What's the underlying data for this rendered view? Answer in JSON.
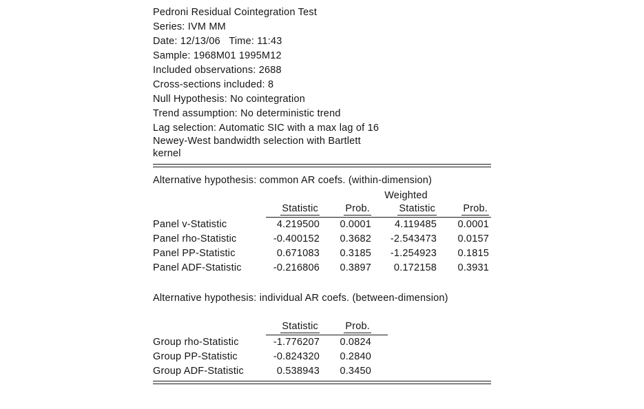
{
  "report": {
    "colors": {
      "background": "#ffffff",
      "text": "#141414",
      "rule": "#1a1a1a"
    },
    "header_lines": [
      "Pedroni Residual Cointegration Test",
      "Series: IVM MM",
      "Date: 12/13/06   Time: 11:43",
      "Sample: 1968M01 1995M12",
      "Included observations: 2688",
      "Cross-sections included: 8",
      "Null Hypothesis: No cointegration",
      "Trend assumption: No deterministic trend",
      "Lag selection: Automatic SIC with a max lag of 16",
      "Newey-West bandwidth selection with Bartlett",
      "kernel"
    ],
    "within": {
      "title": "Alternative hypothesis: common AR coefs. (within-dimension)",
      "weighted_group_label": "Weighted",
      "columns": {
        "statistic": "Statistic",
        "prob": "Prob.",
        "weighted_statistic": "Statistic",
        "weighted_prob": "Prob."
      },
      "rows": [
        {
          "label": "Panel v-Statistic",
          "statistic": "4.219500",
          "prob": "0.0001",
          "weighted_statistic": "4.119485",
          "weighted_prob": "0.0001"
        },
        {
          "label": "Panel rho-Statistic",
          "statistic": "-0.400152",
          "prob": "0.3682",
          "weighted_statistic": "-2.543473",
          "weighted_prob": "0.0157"
        },
        {
          "label": "Panel PP-Statistic",
          "statistic": "0.671083",
          "prob": "0.3185",
          "weighted_statistic": "-1.254923",
          "weighted_prob": "0.1815"
        },
        {
          "label": "Panel ADF-Statistic",
          "statistic": "-0.216806",
          "prob": "0.3897",
          "weighted_statistic": "0.172158",
          "weighted_prob": "0.3931"
        }
      ]
    },
    "between": {
      "title": "Alternative hypothesis: individual AR coefs. (between-dimension)",
      "columns": {
        "statistic": "Statistic",
        "prob": "Prob."
      },
      "rows": [
        {
          "label": "Group rho-Statistic",
          "statistic": "-1.776207",
          "prob": "0.0824"
        },
        {
          "label": "Group PP-Statistic",
          "statistic": "-0.824320",
          "prob": "0.2840"
        },
        {
          "label": "Group ADF-Statistic",
          "statistic": "0.538943",
          "prob": "0.3450"
        }
      ]
    }
  }
}
